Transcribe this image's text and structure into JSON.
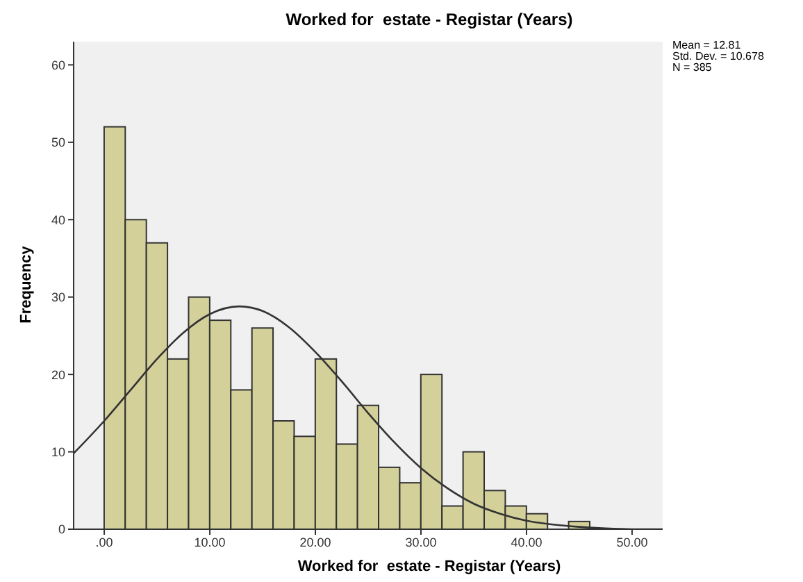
{
  "chart_data": {
    "type": "histogram",
    "title": "Worked for  estate - Registar (Years)",
    "xlabel": "Worked for  estate - Registar (Years)",
    "ylabel": "Frequency",
    "annotations": [
      "Mean = 12.81",
      "Std. Dev. = 10.678",
      "N = 385"
    ],
    "bins": [
      0,
      2,
      4,
      6,
      8,
      10,
      12,
      14,
      16,
      18,
      20,
      22,
      24,
      26,
      28,
      30,
      32,
      34,
      36,
      38,
      40,
      42,
      44,
      46
    ],
    "values": [
      52,
      40,
      37,
      22,
      30,
      27,
      18,
      26,
      14,
      12,
      22,
      11,
      16,
      8,
      6,
      20,
      3,
      10,
      5,
      3,
      2,
      0,
      1
    ],
    "color": "#d4d09a",
    "series": [
      {
        "type": "line",
        "color": "#333333",
        "x": [
          -2.9,
          0,
          2.5,
          5,
          7.5,
          10,
          12.81,
          15,
          17.5,
          20,
          22.5,
          25,
          27.5,
          30,
          32.5,
          35,
          37.5,
          40,
          42.5,
          45,
          47.5,
          50,
          52.9
        ],
        "values": [
          9.8,
          14,
          18,
          22,
          25.4,
          27.8,
          28.8,
          28.2,
          26.1,
          22.9,
          19.1,
          15,
          11.2,
          7.9,
          5.3,
          3.3,
          2,
          1.1,
          0.6,
          0.3,
          0.1,
          0,
          0
        ]
      }
    ],
    "xlim": [
      -2.9,
      52.9
    ],
    "xticks": [
      {
        "value": 0,
        "label": ".00"
      },
      {
        "value": 10,
        "label": "10.00"
      },
      {
        "value": 20,
        "label": "20.00"
      },
      {
        "value": 30,
        "label": "30.00"
      },
      {
        "value": 40,
        "label": "40.00"
      },
      {
        "value": 50,
        "label": "50.00"
      }
    ],
    "ylim": [
      0,
      63
    ],
    "yticks": [
      0,
      10,
      20,
      30,
      40,
      50,
      60
    ],
    "grid": false,
    "marker": "none",
    "line_style": "solid"
  }
}
